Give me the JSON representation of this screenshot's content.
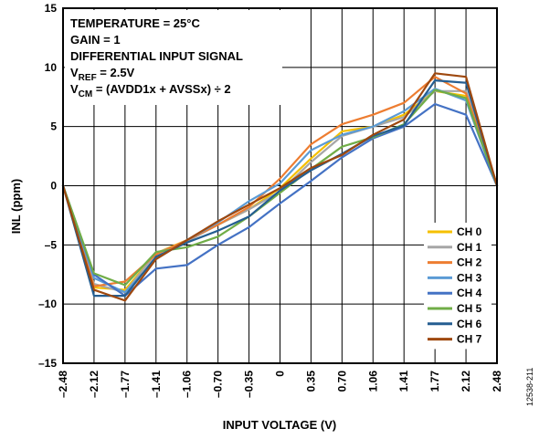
{
  "chart_data": {
    "type": "line",
    "xlabel": "INPUT VOLTAGE (V)",
    "ylabel": "INL (ppm)",
    "ylim": [
      -15,
      15
    ],
    "grid": true,
    "legend_position": "bottom-right",
    "x": [
      -2.48,
      -2.12,
      -1.77,
      -1.41,
      -1.06,
      -0.7,
      -0.35,
      0,
      0.35,
      0.7,
      1.06,
      1.41,
      1.77,
      2.12,
      2.48
    ],
    "x_tick_labels": [
      "–2.48",
      "–2.12",
      "–1.77",
      "–1.41",
      "–1.06",
      "–0.70",
      "–0.35",
      "0",
      "0.35",
      "0.70",
      "1.06",
      "1.41",
      "1.77",
      "2.12",
      "2.48"
    ],
    "y_ticks": [
      15,
      10,
      5,
      0,
      -5,
      -10,
      -15
    ],
    "y_tick_labels": [
      "15",
      "10",
      "5",
      "0",
      "–5",
      "–10",
      "–15"
    ],
    "conditions": [
      {
        "text": "TEMPERATURE = 25°C"
      },
      {
        "text": "GAIN = 1"
      },
      {
        "text": "DIFFERENTIAL INPUT SIGNAL"
      },
      {
        "text": "V",
        "sub": "REF",
        "rest": " = 2.5V"
      },
      {
        "text": "V",
        "sub": "CM",
        "rest": " = (AVDD1x + AVSSx) ÷ 2"
      }
    ],
    "series": [
      {
        "name": "CH 0",
        "color": "#F5C000",
        "values": [
          0,
          -8.6,
          -8.8,
          -5.7,
          -4.6,
          -3.3,
          -2.0,
          -0.2,
          2.3,
          4.6,
          5.0,
          6.0,
          8.0,
          7.6,
          0
        ]
      },
      {
        "name": "CH 1",
        "color": "#A6A6A6",
        "values": [
          0,
          -8.3,
          -9.0,
          -5.7,
          -4.7,
          -3.3,
          -2.0,
          -0.5,
          2.0,
          4.2,
          5.0,
          5.8,
          8.0,
          8.0,
          0
        ]
      },
      {
        "name": "CH 2",
        "color": "#ED7D31",
        "values": [
          0,
          -8.5,
          -8.1,
          -5.8,
          -4.6,
          -3.3,
          -1.8,
          0.6,
          3.5,
          5.2,
          6.0,
          7.0,
          9.2,
          7.8,
          0
        ]
      },
      {
        "name": "CH 3",
        "color": "#5B9BD5",
        "values": [
          0,
          -7.8,
          -9.0,
          -6.2,
          -4.6,
          -3.1,
          -1.3,
          0.2,
          3.0,
          4.3,
          5.0,
          6.3,
          8.2,
          7.2,
          0
        ]
      },
      {
        "name": "CH 4",
        "color": "#4472C4",
        "values": [
          0,
          -7.5,
          -9.3,
          -7.0,
          -6.7,
          -5.0,
          -3.5,
          -1.5,
          0.4,
          2.4,
          4.0,
          5.0,
          6.9,
          6.0,
          0
        ]
      },
      {
        "name": "CH 5",
        "color": "#70AD47",
        "values": [
          0,
          -7.4,
          -8.4,
          -5.6,
          -5.2,
          -4.3,
          -2.6,
          -0.6,
          1.4,
          3.3,
          4.1,
          5.2,
          8.1,
          7.4,
          0
        ]
      },
      {
        "name": "CH 6",
        "color": "#255E91",
        "values": [
          0,
          -9.3,
          -9.3,
          -6.0,
          -4.8,
          -3.8,
          -2.6,
          -0.4,
          1.3,
          2.7,
          4.2,
          5.1,
          8.9,
          8.7,
          0
        ]
      },
      {
        "name": "CH 7",
        "color": "#9E480E",
        "values": [
          0,
          -8.8,
          -9.7,
          -6.2,
          -4.6,
          -3.0,
          -1.6,
          -0.2,
          1.5,
          2.6,
          4.3,
          5.6,
          9.5,
          9.2,
          0
        ]
      }
    ]
  },
  "figure_id": "12538-211"
}
